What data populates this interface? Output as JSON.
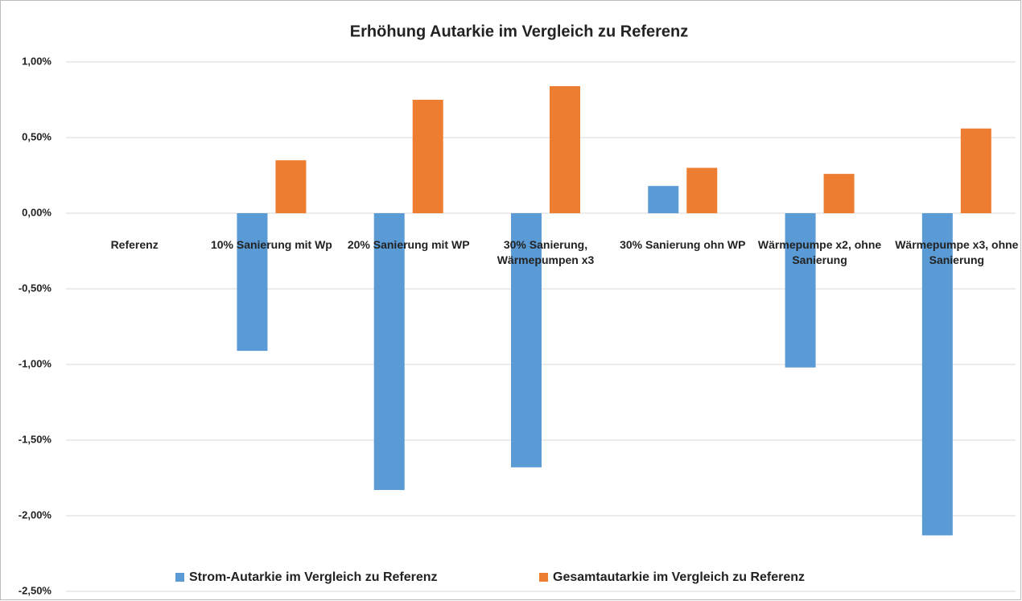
{
  "chart_data": {
    "type": "bar",
    "title": "Erhöhung Autarkie im Vergleich zu Referenz",
    "categories": [
      "Referenz",
      "10% Sanierung mit Wp",
      "20% Sanierung mit WP",
      "30% Sanierung, Wärmepumpen x3",
      "30% Sanierung ohn WP",
      "Wärmepumpe x2, ohne Sanierung",
      "Wärmepumpe x3, ohne Sanierung"
    ],
    "series": [
      {
        "name": "Strom-Autarkie im Vergleich zu Referenz",
        "color": "#5b9bd5",
        "values": [
          0,
          -0.91,
          -1.83,
          -1.68,
          0.18,
          -1.02,
          -2.13
        ]
      },
      {
        "name": "Gesamtautarkie im Vergleich zu Referenz",
        "color": "#ed7d31",
        "values": [
          0,
          0.35,
          0.75,
          0.84,
          0.3,
          0.26,
          0.56
        ]
      }
    ],
    "ylim": [
      -2.5,
      1
    ],
    "yticks": [
      {
        "value": 1,
        "label": "1,00%"
      },
      {
        "value": 0.5,
        "label": "0,50%"
      },
      {
        "value": 0,
        "label": "0,00%"
      },
      {
        "value": -0.5,
        "label": "-0,50%"
      },
      {
        "value": -1,
        "label": "-1,00%"
      },
      {
        "value": -1.5,
        "label": "-1,50%"
      },
      {
        "value": -2,
        "label": "-2,00%"
      },
      {
        "value": -2.5,
        "label": "-2,50%"
      }
    ],
    "grid": true
  }
}
